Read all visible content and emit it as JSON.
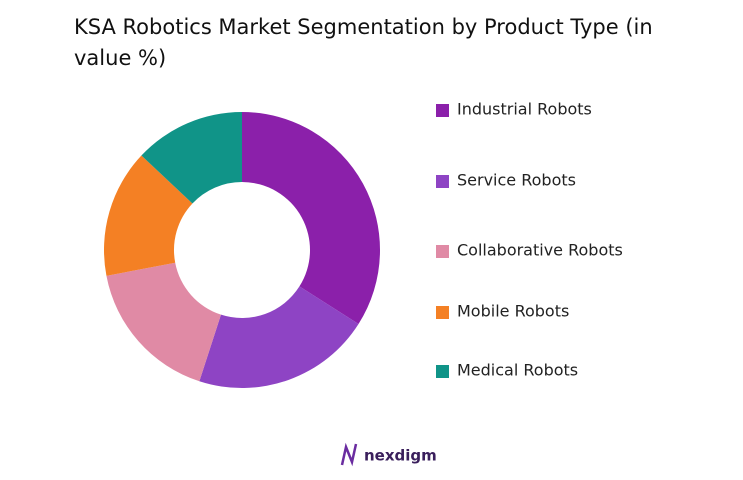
{
  "chart_data": {
    "type": "donut",
    "title": "KSA Robotics Market Segmentation by Product Type (in value %)",
    "categories": [
      "Industrial Robots",
      "Service Robots",
      "Collaborative Robots",
      "Mobile Robots",
      "Medical Robots"
    ],
    "values": [
      34,
      21,
      17,
      15,
      13
    ],
    "colors": [
      "#8b20aa",
      "#8e44c4",
      "#e08aa5",
      "#f48024",
      "#109488"
    ],
    "legend": "right"
  },
  "logo": "nexdigm"
}
